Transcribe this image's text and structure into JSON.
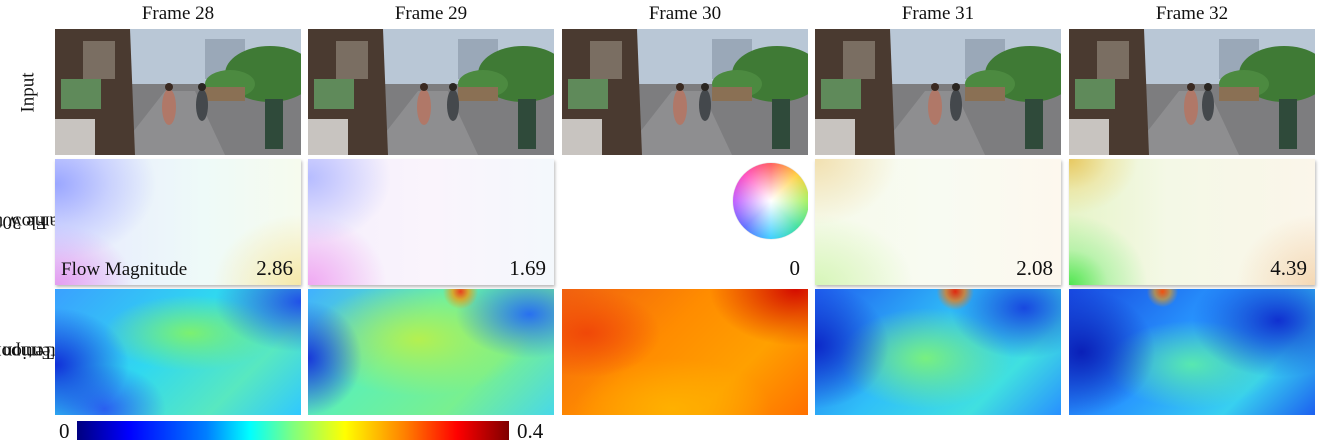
{
  "columns": [
    {
      "title": "Frame 28",
      "flow_magnitude": "2.86"
    },
    {
      "title": "Frame 29",
      "flow_magnitude": "1.69"
    },
    {
      "title": "Frame 30",
      "flow_magnitude": "0"
    },
    {
      "title": "Frame 31",
      "flow_magnitude": "2.08"
    },
    {
      "title": "Frame 32",
      "flow_magnitude": "4.39"
    }
  ],
  "rows": {
    "input": {
      "label": "Input"
    },
    "flow": {
      "label_line1": "Flow to",
      "label_line2": "Frame 30",
      "caption": "Flow Magnitude"
    },
    "attention": {
      "label_line1": "Temporal",
      "label_line2": "Attention"
    }
  },
  "colorbar": {
    "min_label": "0",
    "max_label": "0.4"
  },
  "colors": {
    "jet_low": "#00007f",
    "jet_mid": "#7fff7f",
    "jet_high": "#7f0000",
    "street_sky": "#b9c7d6",
    "street_road": "#7d7d7f",
    "trees": "#3f7a35"
  }
}
